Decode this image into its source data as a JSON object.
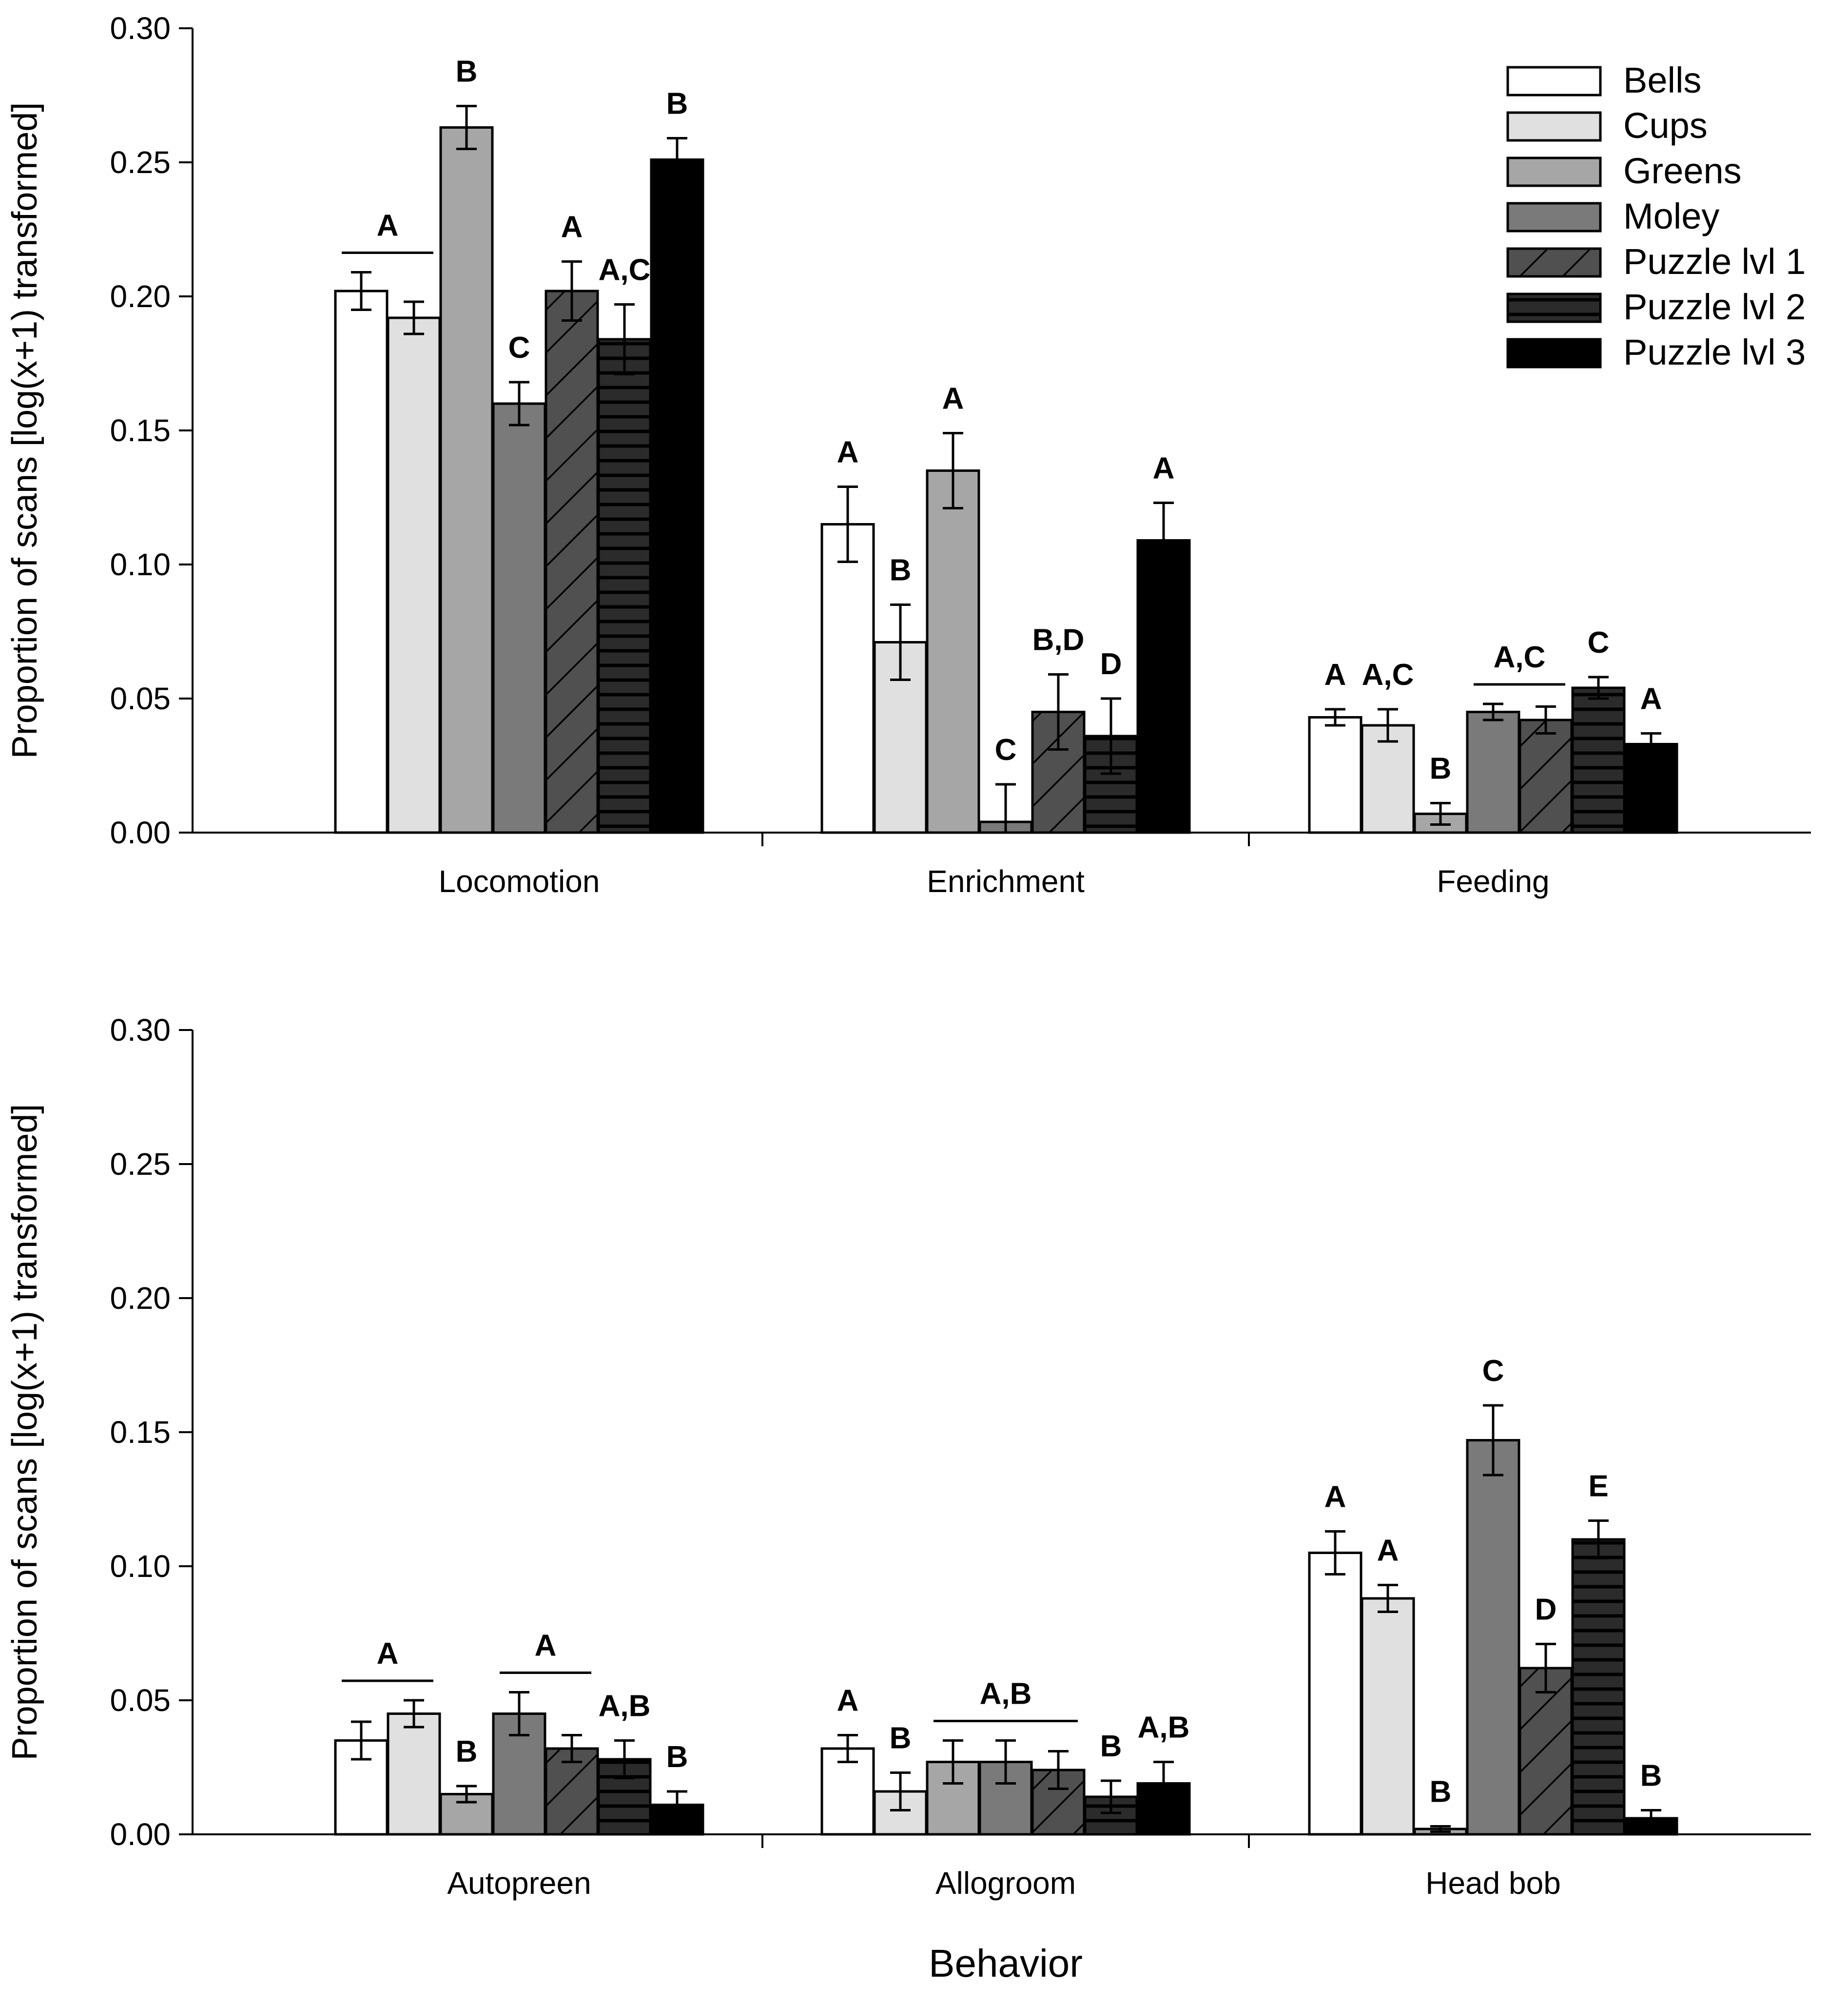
{
  "colors": {
    "Bells": "#ffffff",
    "Cups": "#e0e0e0",
    "Greens": "#a6a6a6",
    "Moley": "#7a7a7a",
    "Puzzle lvl 1": "#505050",
    "Puzzle lvl 2": "#2b2b2b",
    "Puzzle lvl 3": "#000000"
  },
  "chart_data": [
    {
      "type": "bar",
      "panel": "top",
      "ylabel": "Proportion of scans [log(x+1) transformed]",
      "xlabel": "",
      "ylim": [
        0,
        0.3
      ],
      "yticks": [
        "0.00",
        "0.05",
        "0.10",
        "0.15",
        "0.20",
        "0.25",
        "0.30"
      ],
      "legend_position": "top-right",
      "legend": [
        "Bells",
        "Cups",
        "Greens",
        "Moley",
        "Puzzle lvl 1",
        "Puzzle lvl 2",
        "Puzzle lvl 3"
      ],
      "categories": [
        "Locomotion",
        "Enrichment",
        "Feeding"
      ],
      "series": [
        {
          "name": "Bells",
          "values": [
            0.202,
            0.115,
            0.043
          ],
          "errors": [
            0.007,
            0.014,
            0.003
          ]
        },
        {
          "name": "Cups",
          "values": [
            0.192,
            0.071,
            0.04
          ],
          "errors": [
            0.006,
            0.014,
            0.006
          ]
        },
        {
          "name": "Greens",
          "values": [
            0.263,
            0.135,
            0.007
          ],
          "errors": [
            0.008,
            0.014,
            0.004
          ]
        },
        {
          "name": "Moley",
          "values": [
            0.16,
            0.004,
            0.045
          ],
          "errors": [
            0.008,
            0.014,
            0.003
          ]
        },
        {
          "name": "Puzzle lvl 1",
          "values": [
            0.202,
            0.045,
            0.042
          ],
          "errors": [
            0.011,
            0.014,
            0.005
          ]
        },
        {
          "name": "Puzzle lvl 2",
          "values": [
            0.184,
            0.036,
            0.054
          ],
          "errors": [
            0.013,
            0.014,
            0.004
          ]
        },
        {
          "name": "Puzzle lvl 3",
          "values": [
            0.251,
            0.109,
            0.033
          ],
          "errors": [
            0.008,
            0.014,
            0.004
          ]
        }
      ],
      "annotations": [
        {
          "category": "Locomotion",
          "text": "A",
          "from": "Bells",
          "to": "Cups",
          "line": true
        },
        {
          "category": "Locomotion",
          "text": "B",
          "series": "Greens"
        },
        {
          "category": "Locomotion",
          "text": "C",
          "series": "Moley"
        },
        {
          "category": "Locomotion",
          "text": "A",
          "series": "Puzzle lvl 1"
        },
        {
          "category": "Locomotion",
          "text": "A,C",
          "series": "Puzzle lvl 2"
        },
        {
          "category": "Locomotion",
          "text": "B",
          "series": "Puzzle lvl 3"
        },
        {
          "category": "Enrichment",
          "text": "A",
          "series": "Bells"
        },
        {
          "category": "Enrichment",
          "text": "B",
          "series": "Cups"
        },
        {
          "category": "Enrichment",
          "text": "A",
          "series": "Greens"
        },
        {
          "category": "Enrichment",
          "text": "C",
          "series": "Moley"
        },
        {
          "category": "Enrichment",
          "text": "B,D",
          "series": "Puzzle lvl 1"
        },
        {
          "category": "Enrichment",
          "text": "D",
          "series": "Puzzle lvl 2"
        },
        {
          "category": "Enrichment",
          "text": "A",
          "series": "Puzzle lvl 3"
        },
        {
          "category": "Feeding",
          "text": "A",
          "series": "Bells"
        },
        {
          "category": "Feeding",
          "text": "A,C",
          "series": "Cups"
        },
        {
          "category": "Feeding",
          "text": "B",
          "series": "Greens"
        },
        {
          "category": "Feeding",
          "text": "A,C",
          "from": "Moley",
          "to": "Puzzle lvl 1",
          "line": true
        },
        {
          "category": "Feeding",
          "text": "C",
          "series": "Puzzle lvl 2"
        },
        {
          "category": "Feeding",
          "text": "A",
          "series": "Puzzle lvl 3"
        }
      ]
    },
    {
      "type": "bar",
      "panel": "bottom",
      "ylabel": "Proportion of scans [log(x+1) transformed]",
      "xlabel": "Behavior",
      "ylim": [
        0,
        0.3
      ],
      "yticks": [
        "0.00",
        "0.05",
        "0.10",
        "0.15",
        "0.20",
        "0.25",
        "0.30"
      ],
      "categories": [
        "Autopreen",
        "Allogroom",
        "Head bob"
      ],
      "series": [
        {
          "name": "Bells",
          "values": [
            0.035,
            0.032,
            0.105
          ],
          "errors": [
            0.007,
            0.005,
            0.008
          ]
        },
        {
          "name": "Cups",
          "values": [
            0.045,
            0.016,
            0.088
          ],
          "errors": [
            0.005,
            0.007,
            0.005
          ]
        },
        {
          "name": "Greens",
          "values": [
            0.015,
            0.027,
            0.002
          ],
          "errors": [
            0.003,
            0.008,
            0.001
          ]
        },
        {
          "name": "Moley",
          "values": [
            0.045,
            0.027,
            0.147
          ],
          "errors": [
            0.008,
            0.008,
            0.013
          ]
        },
        {
          "name": "Puzzle lvl 1",
          "values": [
            0.032,
            0.024,
            0.062
          ],
          "errors": [
            0.005,
            0.007,
            0.009
          ]
        },
        {
          "name": "Puzzle lvl 2",
          "values": [
            0.028,
            0.014,
            0.11
          ],
          "errors": [
            0.007,
            0.006,
            0.007
          ]
        },
        {
          "name": "Puzzle lvl 3",
          "values": [
            0.011,
            0.019,
            0.006
          ],
          "errors": [
            0.005,
            0.008,
            0.003
          ]
        }
      ],
      "annotations": [
        {
          "category": "Autopreen",
          "text": "A",
          "from": "Bells",
          "to": "Cups",
          "line": true
        },
        {
          "category": "Autopreen",
          "text": "B",
          "series": "Greens"
        },
        {
          "category": "Autopreen",
          "text": "A",
          "from": "Moley",
          "to": "Puzzle lvl 1",
          "line": true
        },
        {
          "category": "Autopreen",
          "text": "A,B",
          "series": "Puzzle lvl 2"
        },
        {
          "category": "Autopreen",
          "text": "B",
          "series": "Puzzle lvl 3"
        },
        {
          "category": "Allogroom",
          "text": "A",
          "series": "Bells"
        },
        {
          "category": "Allogroom",
          "text": "B",
          "series": "Cups"
        },
        {
          "category": "Allogroom",
          "text": "A,B",
          "from": "Greens",
          "to": "Puzzle lvl 1",
          "line": true
        },
        {
          "category": "Allogroom",
          "text": "B",
          "series": "Puzzle lvl 2"
        },
        {
          "category": "Allogroom",
          "text": "A,B",
          "series": "Puzzle lvl 3"
        },
        {
          "category": "Head bob",
          "text": "A",
          "series": "Bells"
        },
        {
          "category": "Head bob",
          "text": "A",
          "series": "Cups"
        },
        {
          "category": "Head bob",
          "text": "B",
          "series": "Greens"
        },
        {
          "category": "Head bob",
          "text": "C",
          "series": "Moley"
        },
        {
          "category": "Head bob",
          "text": "D",
          "series": "Puzzle lvl 1"
        },
        {
          "category": "Head bob",
          "text": "E",
          "series": "Puzzle lvl 2"
        },
        {
          "category": "Head bob",
          "text": "B",
          "series": "Puzzle lvl 3"
        }
      ]
    }
  ]
}
